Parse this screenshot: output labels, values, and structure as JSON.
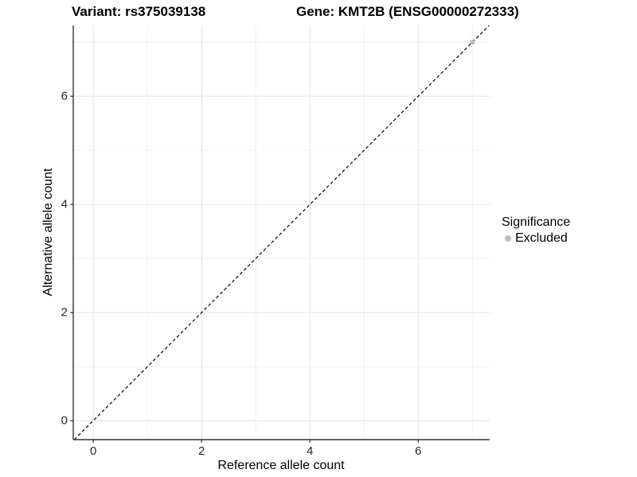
{
  "figure": {
    "title_left": "Variant: rs375039138",
    "title_right": "Gene: KMT2B (ENSG00000272333)"
  },
  "legend": {
    "title": "Significance",
    "items": [
      {
        "label": "Excluded",
        "color": "#bdbdbd"
      }
    ]
  },
  "chart_data": {
    "type": "scatter",
    "title": "Variant: rs375039138 | Gene: KMT2B (ENSG00000272333)",
    "xlabel": "Reference allele count",
    "ylabel": "Alternative allele count",
    "xlim": [
      -0.37,
      7.32
    ],
    "ylim": [
      -0.35,
      7.31
    ],
    "xticks": [
      0,
      2,
      4,
      6
    ],
    "yticks": [
      0,
      2,
      4,
      6
    ],
    "minor_xticks": [
      1,
      3,
      5,
      7
    ],
    "minor_yticks": [
      1,
      3,
      5,
      7
    ],
    "grid": true,
    "legend_position": "right",
    "series": [
      {
        "name": "Excluded",
        "color": "#bdbdbd",
        "points": [
          {
            "x": 7,
            "y": 7
          }
        ]
      }
    ],
    "reference_line": {
      "kind": "identity",
      "slope": 1,
      "intercept": 0,
      "style": "dashed",
      "color": "#000000"
    },
    "style": {
      "major_grid_color": "#e3e3e3",
      "minor_grid_color": "#f1f1f1",
      "axis_line_color": "#333333",
      "panel_background": "#ffffff"
    }
  }
}
